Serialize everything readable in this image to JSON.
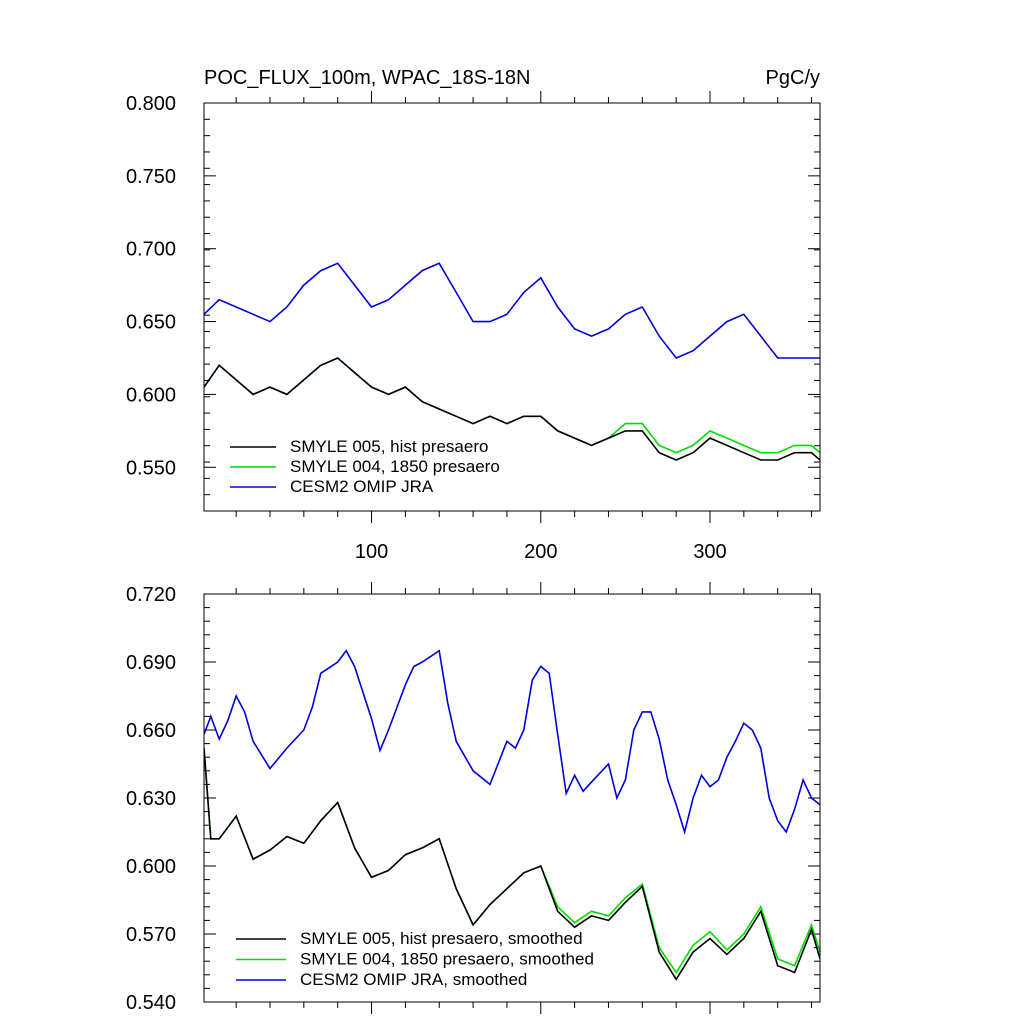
{
  "chart_data": [
    {
      "type": "line",
      "title": "POC_FLUX_100m, WPAC_18S-18N",
      "units": "PgC/y",
      "xlim": [
        1,
        365
      ],
      "ylim": [
        0.52,
        0.8
      ],
      "yticks": [
        "0.800",
        "0.750",
        "0.700",
        "0.650",
        "0.600",
        "0.550"
      ],
      "xticks": [
        "100",
        "200",
        "300"
      ],
      "legend_position": "lower-left",
      "series": [
        {
          "name": "SMYLE 005, hist presaero",
          "color": "#000000",
          "x": [
            1,
            10,
            20,
            30,
            40,
            50,
            60,
            70,
            80,
            90,
            100,
            110,
            120,
            130,
            140,
            150,
            160,
            170,
            180,
            190,
            200,
            210,
            220,
            230,
            240,
            250,
            260,
            270,
            280,
            290,
            300,
            310,
            320,
            330,
            340,
            350,
            360,
            365
          ],
          "values": [
            0.605,
            0.62,
            0.61,
            0.6,
            0.605,
            0.6,
            0.61,
            0.62,
            0.625,
            0.615,
            0.605,
            0.6,
            0.605,
            0.595,
            0.59,
            0.585,
            0.58,
            0.585,
            0.58,
            0.585,
            0.585,
            0.575,
            0.57,
            0.565,
            0.57,
            0.575,
            0.575,
            0.56,
            0.555,
            0.56,
            0.57,
            0.565,
            0.56,
            0.555,
            0.555,
            0.56,
            0.56,
            0.555
          ]
        },
        {
          "name": "SMYLE 004, 1850 presaero",
          "color": "#00dd00",
          "x": [
            1,
            10,
            20,
            30,
            40,
            50,
            60,
            70,
            80,
            90,
            100,
            110,
            120,
            130,
            140,
            150,
            160,
            170,
            180,
            190,
            200,
            210,
            220,
            230,
            240,
            250,
            260,
            270,
            280,
            290,
            300,
            310,
            320,
            330,
            340,
            350,
            360,
            365
          ],
          "values": [
            0.605,
            0.62,
            0.61,
            0.6,
            0.605,
            0.6,
            0.61,
            0.62,
            0.625,
            0.615,
            0.605,
            0.6,
            0.605,
            0.595,
            0.59,
            0.585,
            0.58,
            0.585,
            0.58,
            0.585,
            0.585,
            0.575,
            0.57,
            0.565,
            0.57,
            0.58,
            0.58,
            0.565,
            0.56,
            0.565,
            0.575,
            0.57,
            0.565,
            0.56,
            0.56,
            0.565,
            0.565,
            0.56
          ]
        },
        {
          "name": "CESM2 OMIP JRA",
          "color": "#0000dd",
          "x": [
            1,
            10,
            20,
            30,
            40,
            50,
            60,
            70,
            80,
            90,
            100,
            110,
            120,
            130,
            140,
            150,
            160,
            170,
            180,
            190,
            200,
            210,
            220,
            230,
            240,
            250,
            260,
            270,
            280,
            290,
            300,
            310,
            320,
            330,
            340,
            350,
            360,
            365
          ],
          "values": [
            0.655,
            0.665,
            0.66,
            0.655,
            0.65,
            0.66,
            0.675,
            0.685,
            0.69,
            0.675,
            0.66,
            0.665,
            0.675,
            0.685,
            0.69,
            0.67,
            0.65,
            0.65,
            0.655,
            0.67,
            0.68,
            0.66,
            0.645,
            0.64,
            0.645,
            0.655,
            0.66,
            0.64,
            0.625,
            0.63,
            0.64,
            0.65,
            0.655,
            0.64,
            0.625,
            0.625,
            0.625,
            0.625
          ]
        }
      ]
    },
    {
      "type": "line",
      "xlim": [
        1,
        365
      ],
      "ylim": [
        0.54,
        0.72
      ],
      "yticks": [
        "0.720",
        "0.690",
        "0.660",
        "0.630",
        "0.600",
        "0.570",
        "0.540"
      ],
      "legend_position": "lower-left",
      "series": [
        {
          "name": "SMYLE 005, hist presaero, smoothed",
          "color": "#000000",
          "x": [
            1,
            5,
            10,
            20,
            30,
            40,
            50,
            60,
            70,
            80,
            90,
            100,
            110,
            120,
            130,
            140,
            150,
            160,
            170,
            180,
            190,
            200,
            210,
            220,
            230,
            240,
            250,
            260,
            270,
            280,
            290,
            300,
            310,
            320,
            330,
            340,
            350,
            360,
            365
          ],
          "values": [
            0.652,
            0.612,
            0.612,
            0.622,
            0.603,
            0.607,
            0.613,
            0.61,
            0.62,
            0.628,
            0.608,
            0.595,
            0.598,
            0.605,
            0.608,
            0.612,
            0.59,
            0.574,
            0.583,
            0.59,
            0.597,
            0.6,
            0.58,
            0.573,
            0.578,
            0.576,
            0.584,
            0.591,
            0.562,
            0.55,
            0.562,
            0.568,
            0.561,
            0.568,
            0.58,
            0.556,
            0.553,
            0.572,
            0.559
          ]
        },
        {
          "name": "SMYLE 004, 1850 presaero, smoothed",
          "color": "#00dd00",
          "x": [
            1,
            5,
            10,
            20,
            30,
            40,
            50,
            60,
            70,
            80,
            90,
            100,
            110,
            120,
            130,
            140,
            150,
            160,
            170,
            180,
            190,
            200,
            210,
            220,
            230,
            240,
            250,
            260,
            270,
            280,
            290,
            300,
            310,
            320,
            330,
            340,
            350,
            360,
            365
          ],
          "values": [
            0.652,
            0.612,
            0.612,
            0.622,
            0.603,
            0.607,
            0.613,
            0.61,
            0.62,
            0.628,
            0.608,
            0.595,
            0.598,
            0.605,
            0.608,
            0.612,
            0.59,
            0.574,
            0.583,
            0.59,
            0.597,
            0.6,
            0.582,
            0.575,
            0.58,
            0.578,
            0.586,
            0.592,
            0.564,
            0.553,
            0.565,
            0.571,
            0.563,
            0.57,
            0.582,
            0.559,
            0.556,
            0.574,
            0.562
          ]
        },
        {
          "name": "CESM2 OMIP JRA, smoothed",
          "color": "#0000dd",
          "x": [
            1,
            5,
            10,
            15,
            20,
            25,
            30,
            40,
            50,
            60,
            65,
            70,
            80,
            85,
            90,
            100,
            105,
            110,
            120,
            125,
            130,
            140,
            145,
            150,
            160,
            170,
            180,
            185,
            190,
            195,
            200,
            205,
            210,
            215,
            220,
            225,
            230,
            240,
            245,
            250,
            255,
            260,
            265,
            270,
            275,
            280,
            285,
            290,
            295,
            300,
            305,
            310,
            315,
            320,
            325,
            330,
            335,
            340,
            345,
            350,
            355,
            360,
            365
          ],
          "values": [
            0.658,
            0.666,
            0.656,
            0.664,
            0.675,
            0.668,
            0.655,
            0.643,
            0.652,
            0.66,
            0.67,
            0.685,
            0.69,
            0.695,
            0.688,
            0.665,
            0.651,
            0.66,
            0.68,
            0.688,
            0.69,
            0.695,
            0.672,
            0.655,
            0.642,
            0.636,
            0.655,
            0.652,
            0.66,
            0.682,
            0.688,
            0.685,
            0.658,
            0.632,
            0.64,
            0.633,
            0.637,
            0.645,
            0.63,
            0.638,
            0.66,
            0.668,
            0.668,
            0.656,
            0.638,
            0.627,
            0.615,
            0.63,
            0.64,
            0.635,
            0.638,
            0.648,
            0.655,
            0.663,
            0.66,
            0.652,
            0.63,
            0.62,
            0.615,
            0.625,
            0.638,
            0.63,
            0.627
          ]
        }
      ]
    }
  ]
}
